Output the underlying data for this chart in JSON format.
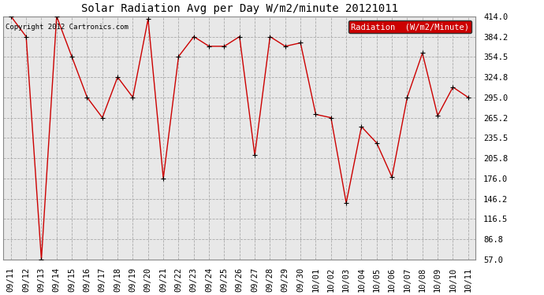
{
  "title": "Solar Radiation Avg per Day W/m2/minute 20121011",
  "copyright_text": "Copyright 2012 Cartronics.com",
  "legend_label": "Radiation  (W/m2/Minute)",
  "legend_bg": "#cc0000",
  "legend_text_color": "#ffffff",
  "x_labels": [
    "09/11",
    "09/12",
    "09/13",
    "09/14",
    "09/15",
    "09/16",
    "09/17",
    "09/18",
    "09/19",
    "09/20",
    "09/21",
    "09/22",
    "09/23",
    "09/24",
    "09/25",
    "09/26",
    "09/27",
    "09/28",
    "09/29",
    "09/30",
    "10/01",
    "10/02",
    "10/03",
    "10/04",
    "10/05",
    "10/06",
    "10/07",
    "10/08",
    "10/09",
    "10/10",
    "10/11"
  ],
  "y_values": [
    414.0,
    384.2,
    57.0,
    414.0,
    354.5,
    295.0,
    265.2,
    324.8,
    295.0,
    410.0,
    176.0,
    355.0,
    384.2,
    370.0,
    370.0,
    384.2,
    210.0,
    384.2,
    370.0,
    375.0,
    270.0,
    265.2,
    140.0,
    252.0,
    228.0,
    178.0,
    295.0,
    360.0,
    268.0,
    310.0,
    295.0
  ],
  "y_ticks": [
    57.0,
    86.8,
    116.5,
    146.2,
    176.0,
    205.8,
    235.5,
    265.2,
    295.0,
    324.8,
    354.5,
    384.2,
    414.0
  ],
  "ylim": [
    57.0,
    414.0
  ],
  "line_color": "#cc0000",
  "marker_color": "#000000",
  "bg_color": "#ffffff",
  "plot_bg": "#e8e8e8",
  "grid_color": "#aaaaaa",
  "title_fontsize": 10,
  "tick_fontsize": 7.5,
  "legend_fontsize": 7.5
}
